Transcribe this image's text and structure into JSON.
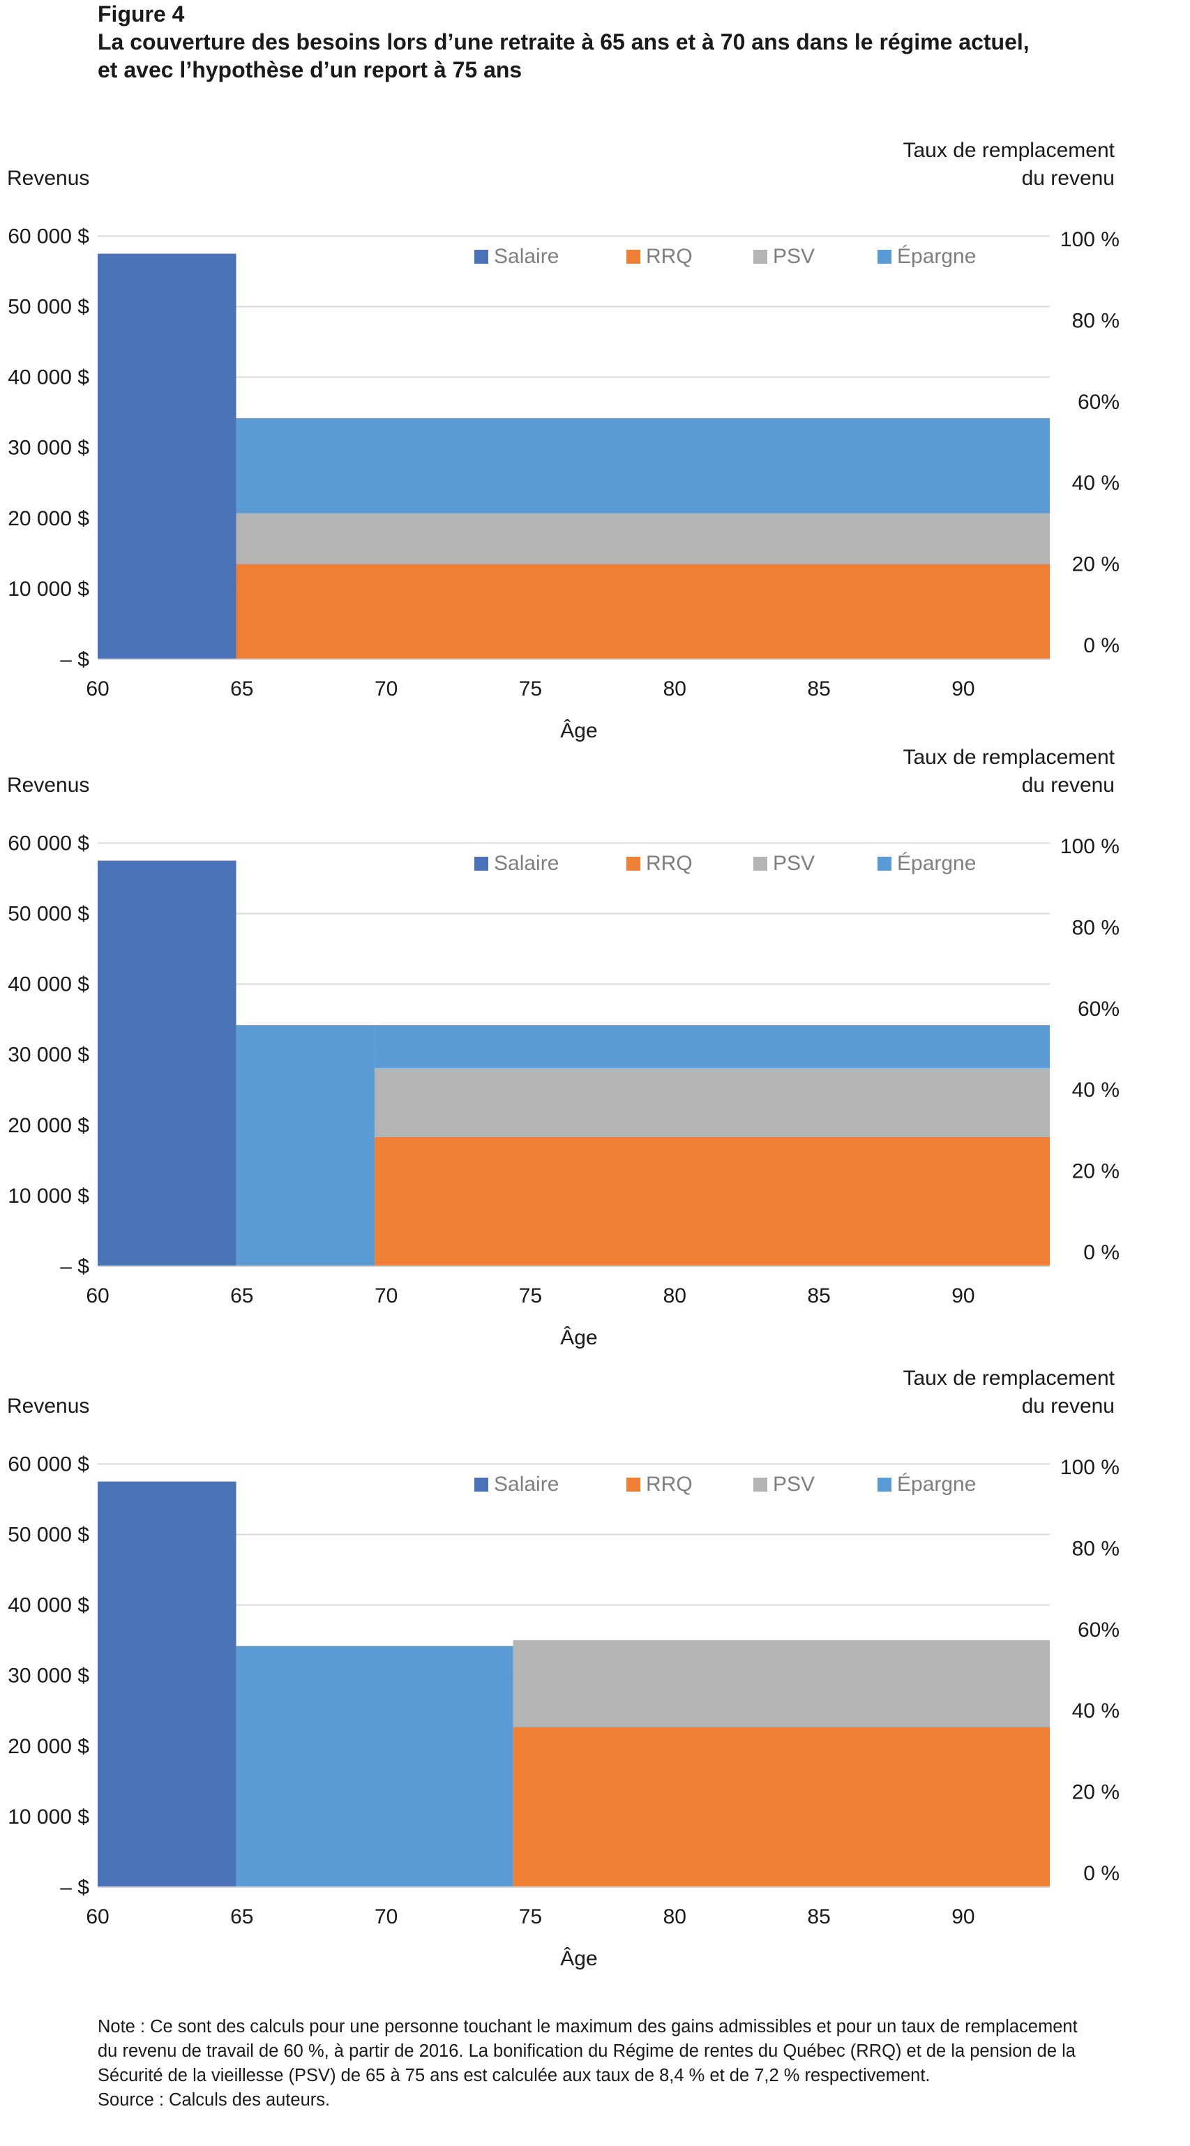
{
  "figure": {
    "label": "Figure 4",
    "title_line1": "La couverture des besoins lors d’une retraite à 65 ans et à 70 ans dans le régime actuel,",
    "title_line2": "et avec l’hypothèse d’un report à 75 ans"
  },
  "colors": {
    "Salaire": "#4a72b8",
    "RRQ": "#ef7f34",
    "PSV": "#b4b4b4",
    "Épargne": "#5b9bd5"
  },
  "chart_data": [
    {
      "type": "area",
      "ylabel": "Revenus",
      "y2label_line1": "Taux de remplacement",
      "y2label_line2": "du revenu",
      "xlabel": "Âge",
      "xlim": [
        60,
        93
      ],
      "ylim": [
        0,
        63000
      ],
      "x_ticks": [
        "60",
        "65",
        "70",
        "75",
        "80",
        "85",
        "90"
      ],
      "y_ticks": [
        "60 000 $",
        "50 000 $",
        "40 000 $",
        "30 000 $",
        "20 000 $",
        "10 000 $",
        "– $"
      ],
      "y2_ticks": [
        "100 %",
        "80 %",
        "60%",
        "40 %",
        "20 %",
        "0 %"
      ],
      "legend": [
        "Salaire",
        "RRQ",
        "PSV",
        "Épargne"
      ],
      "legend_position": "top",
      "grid": true,
      "series": [
        {
          "name": "Salaire",
          "segments": [
            {
              "from": 60,
              "to": 64.8,
              "bottom": 0,
              "top": 57500
            }
          ]
        },
        {
          "name": "RRQ",
          "segments": [
            {
              "from": 64.8,
              "to": 93,
              "bottom": 0,
              "top": 13500
            }
          ]
        },
        {
          "name": "PSV",
          "segments": [
            {
              "from": 64.8,
              "to": 93,
              "bottom": 13500,
              "top": 20700
            }
          ]
        },
        {
          "name": "Épargne",
          "segments": [
            {
              "from": 64.8,
              "to": 93,
              "bottom": 20700,
              "top": 34200
            }
          ]
        }
      ]
    },
    {
      "type": "area",
      "ylabel": "Revenus",
      "y2label_line1": "Taux de remplacement",
      "y2label_line2": "du revenu",
      "xlabel": "Âge",
      "xlim": [
        60,
        93
      ],
      "ylim": [
        0,
        63000
      ],
      "x_ticks": [
        "60",
        "65",
        "70",
        "75",
        "80",
        "85",
        "90"
      ],
      "y_ticks": [
        "60 000 $",
        "50 000 $",
        "40 000 $",
        "30 000 $",
        "20 000 $",
        "10 000 $",
        "– $"
      ],
      "y2_ticks": [
        "100 %",
        "80 %",
        "60%",
        "40 %",
        "20 %",
        "0 %"
      ],
      "legend": [
        "Salaire",
        "RRQ",
        "PSV",
        "Épargne"
      ],
      "legend_position": "top",
      "grid": true,
      "series": [
        {
          "name": "Salaire",
          "segments": [
            {
              "from": 60,
              "to": 64.8,
              "bottom": 0,
              "top": 57500
            }
          ]
        },
        {
          "name": "RRQ",
          "segments": [
            {
              "from": 69.6,
              "to": 93,
              "bottom": 0,
              "top": 18300
            }
          ]
        },
        {
          "name": "PSV",
          "segments": [
            {
              "from": 69.6,
              "to": 93,
              "bottom": 18300,
              "top": 28100
            }
          ]
        },
        {
          "name": "Épargne",
          "segments": [
            {
              "from": 64.8,
              "to": 69.6,
              "bottom": 0,
              "top": 34200
            },
            {
              "from": 69.6,
              "to": 93,
              "bottom": 28100,
              "top": 34200
            }
          ]
        }
      ]
    },
    {
      "type": "area",
      "ylabel": "Revenus",
      "y2label_line1": "Taux de remplacement",
      "y2label_line2": "du revenu",
      "xlabel": "Âge",
      "xlim": [
        60,
        93
      ],
      "ylim": [
        0,
        63000
      ],
      "x_ticks": [
        "60",
        "65",
        "70",
        "75",
        "80",
        "85",
        "90"
      ],
      "y_ticks": [
        "60 000 $",
        "50 000 $",
        "40 000 $",
        "30 000 $",
        "20 000 $",
        "10 000 $",
        "– $"
      ],
      "y2_ticks": [
        "100 %",
        "80 %",
        "60%",
        "40 %",
        "20 %",
        "0 %"
      ],
      "legend": [
        "Salaire",
        "RRQ",
        "PSV",
        "Épargne"
      ],
      "legend_position": "top",
      "grid": true,
      "series": [
        {
          "name": "Salaire",
          "segments": [
            {
              "from": 60,
              "to": 64.8,
              "bottom": 0,
              "top": 57500
            }
          ]
        },
        {
          "name": "RRQ",
          "segments": [
            {
              "from": 74.4,
              "to": 93,
              "bottom": 0,
              "top": 22700
            }
          ]
        },
        {
          "name": "PSV",
          "segments": [
            {
              "from": 74.4,
              "to": 93,
              "bottom": 22700,
              "top": 35000
            }
          ]
        },
        {
          "name": "Épargne",
          "segments": [
            {
              "from": 64.8,
              "to": 74.4,
              "bottom": 0,
              "top": 34200
            }
          ]
        }
      ]
    }
  ],
  "note": {
    "line1": "Note : Ce sont des calculs pour une personne touchant le maximum des gains admissibles et pour un taux de remplacement",
    "line2": "du revenu de travail de 60 %, à partir de 2016. La bonification du Régime de rentes du Québec (RRQ) et de la pension de la",
    "line3": "Sécurité de la vieillesse (PSV) de 65 à 75 ans est calculée aux taux de 8,4 % et de 7,2 % respectivement.",
    "source": "Source : Calculs des auteurs."
  }
}
